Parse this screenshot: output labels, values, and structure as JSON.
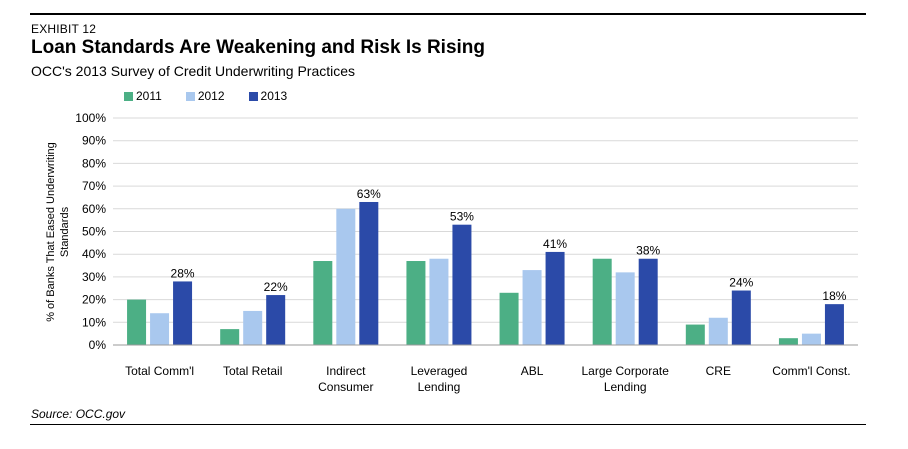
{
  "exhibit": "EXHIBIT 12",
  "title": "Loan Standards Are Weakening and Risk Is Rising",
  "subtitle": "OCC's 2013 Survey of Credit Underwriting Practices",
  "source": "Source: OCC.gov",
  "colors": {
    "2011": "#4caf85",
    "2012": "#a9c8ee",
    "2013": "#2b4aa8",
    "grid": "#d9d9d9"
  },
  "chart_data": {
    "type": "bar",
    "ylabel": [
      "% of Banks That Eased  Underwriting",
      "Standards"
    ],
    "ylim": [
      0,
      100
    ],
    "yticks": [
      "0%",
      "10%",
      "20%",
      "30%",
      "40%",
      "50%",
      "60%",
      "70%",
      "80%",
      "90%",
      "100%"
    ],
    "legend_position": "top-left",
    "grid": true,
    "categories": [
      [
        "Total Comm'l"
      ],
      [
        "Total Retail"
      ],
      [
        "Indirect",
        "Consumer"
      ],
      [
        "Leveraged",
        "Lending"
      ],
      [
        "ABL"
      ],
      [
        "Large Corporate",
        "Lending"
      ],
      [
        "CRE"
      ],
      [
        "Comm'l Const."
      ]
    ],
    "series": [
      {
        "name": "2011",
        "values": [
          20,
          7,
          37,
          37,
          23,
          38,
          9,
          3
        ]
      },
      {
        "name": "2012",
        "values": [
          14,
          15,
          60,
          38,
          33,
          32,
          12,
          5
        ]
      },
      {
        "name": "2013",
        "values": [
          28,
          22,
          63,
          53,
          41,
          38,
          24,
          18
        ]
      }
    ],
    "data_labels": [
      "28%",
      "22%",
      "63%",
      "53%",
      "41%",
      "38%",
      "24%",
      "18%"
    ]
  }
}
